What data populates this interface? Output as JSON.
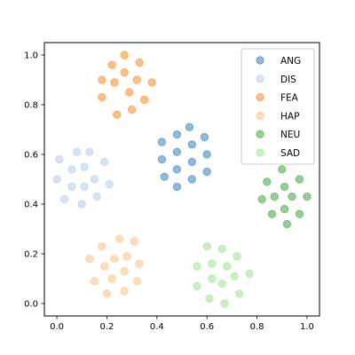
{
  "chart_data": {
    "type": "scatter",
    "title": "",
    "xlabel": "",
    "ylabel": "",
    "xlim": [
      -0.05,
      1.05
    ],
    "ylim": [
      -0.05,
      1.05
    ],
    "xticks": [
      0.0,
      0.2,
      0.4,
      0.6,
      0.8,
      1.0
    ],
    "yticks": [
      0.0,
      0.2,
      0.4,
      0.6,
      0.8,
      1.0
    ],
    "xtick_labels": [
      "0.0",
      "0.2",
      "0.4",
      "0.6",
      "0.8",
      "1.0"
    ],
    "ytick_labels": [
      "0.0",
      "0.2",
      "0.4",
      "0.6",
      "0.8",
      "1.0"
    ],
    "grid": false,
    "legend_position": "top-right",
    "marker_opacity": 0.5,
    "series": [
      {
        "name": "ANG",
        "color": "#1f77b4",
        "points": [
          [
            0.42,
            0.65
          ],
          [
            0.48,
            0.68
          ],
          [
            0.53,
            0.71
          ],
          [
            0.59,
            0.67
          ],
          [
            0.42,
            0.58
          ],
          [
            0.48,
            0.61
          ],
          [
            0.54,
            0.64
          ],
          [
            0.48,
            0.54
          ],
          [
            0.54,
            0.57
          ],
          [
            0.6,
            0.6
          ],
          [
            0.43,
            0.51
          ],
          [
            0.48,
            0.47
          ],
          [
            0.54,
            0.5
          ],
          [
            0.6,
            0.53
          ]
        ]
      },
      {
        "name": "DIS",
        "color": "#aec7e8",
        "points": [
          [
            0.01,
            0.58
          ],
          [
            0.08,
            0.61
          ],
          [
            0.13,
            0.61
          ],
          [
            0.06,
            0.54
          ],
          [
            0.11,
            0.55
          ],
          [
            0.19,
            0.57
          ],
          [
            0.0,
            0.5
          ],
          [
            0.06,
            0.47
          ],
          [
            0.11,
            0.47
          ],
          [
            0.15,
            0.5
          ],
          [
            0.21,
            0.48
          ],
          [
            0.03,
            0.42
          ],
          [
            0.1,
            0.4
          ],
          [
            0.16,
            0.43
          ]
        ]
      },
      {
        "name": "FEA",
        "color": "#ff7f0e",
        "points": [
          [
            0.27,
            1.0
          ],
          [
            0.22,
            0.96
          ],
          [
            0.33,
            0.97
          ],
          [
            0.18,
            0.9
          ],
          [
            0.23,
            0.89
          ],
          [
            0.27,
            0.93
          ],
          [
            0.32,
            0.9
          ],
          [
            0.38,
            0.89
          ],
          [
            0.18,
            0.83
          ],
          [
            0.29,
            0.85
          ],
          [
            0.35,
            0.82
          ],
          [
            0.24,
            0.76
          ],
          [
            0.3,
            0.78
          ]
        ]
      },
      {
        "name": "HAP",
        "color": "#ffbb78",
        "points": [
          [
            0.25,
            0.26
          ],
          [
            0.31,
            0.25
          ],
          [
            0.18,
            0.23
          ],
          [
            0.13,
            0.18
          ],
          [
            0.23,
            0.18
          ],
          [
            0.28,
            0.19
          ],
          [
            0.33,
            0.16
          ],
          [
            0.19,
            0.15
          ],
          [
            0.27,
            0.13
          ],
          [
            0.15,
            0.09
          ],
          [
            0.22,
            0.1
          ],
          [
            0.32,
            0.09
          ],
          [
            0.2,
            0.04
          ],
          [
            0.27,
            0.05
          ]
        ]
      },
      {
        "name": "NEU",
        "color": "#2ca02c",
        "points": [
          [
            0.9,
            0.54
          ],
          [
            0.84,
            0.49
          ],
          [
            0.97,
            0.5
          ],
          [
            0.91,
            0.47
          ],
          [
            0.82,
            0.42
          ],
          [
            0.87,
            0.43
          ],
          [
            0.94,
            0.43
          ],
          [
            1.0,
            0.43
          ],
          [
            0.86,
            0.36
          ],
          [
            0.91,
            0.38
          ],
          [
            0.97,
            0.36
          ],
          [
            0.92,
            0.32
          ]
        ]
      },
      {
        "name": "SAD",
        "color": "#98df8a",
        "points": [
          [
            0.6,
            0.23
          ],
          [
            0.66,
            0.22
          ],
          [
            0.72,
            0.19
          ],
          [
            0.56,
            0.15
          ],
          [
            0.62,
            0.16
          ],
          [
            0.68,
            0.15
          ],
          [
            0.77,
            0.12
          ],
          [
            0.62,
            0.1
          ],
          [
            0.66,
            0.08
          ],
          [
            0.71,
            0.11
          ],
          [
            0.56,
            0.07
          ],
          [
            0.61,
            0.02
          ],
          [
            0.67,
            0.0
          ],
          [
            0.73,
            0.04
          ]
        ]
      }
    ]
  }
}
